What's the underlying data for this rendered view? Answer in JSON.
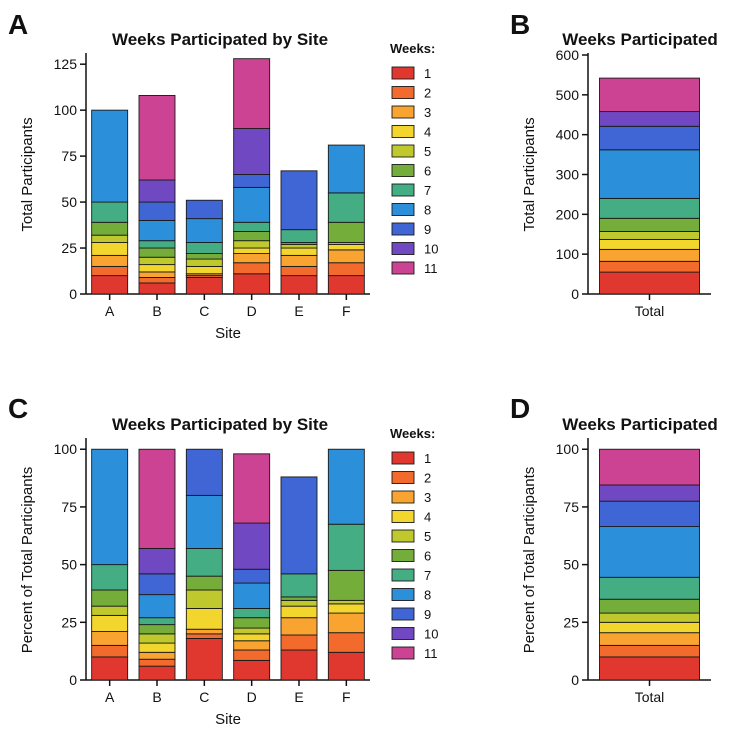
{
  "panels": [
    {
      "letter": "A"
    },
    {
      "letter": "B"
    },
    {
      "letter": "C"
    },
    {
      "letter": "D"
    }
  ],
  "legend": {
    "title": "Weeks:",
    "items": [
      "1",
      "2",
      "3",
      "4",
      "5",
      "6",
      "7",
      "8",
      "9",
      "10",
      "11"
    ],
    "colors": [
      "#e0382f",
      "#f26b2c",
      "#f9a431",
      "#f3d62d",
      "#bfc92d",
      "#74ad3a",
      "#44ad84",
      "#2b8fda",
      "#3f66d4",
      "#7048c2",
      "#cd4394"
    ]
  },
  "chart_data": [
    {
      "type": "bar",
      "stacked": true,
      "title": "Weeks Participated by Site",
      "xlabel": "Site",
      "ylabel": "Total Participants",
      "categories": [
        "A",
        "B",
        "C",
        "D",
        "E",
        "F"
      ],
      "ylim": [
        0,
        130
      ],
      "yticks": [
        0,
        25,
        50,
        75,
        100,
        125
      ],
      "series": [
        {
          "name": "1",
          "values": [
            10,
            6,
            9,
            11,
            10,
            10
          ]
        },
        {
          "name": "2",
          "values": [
            5,
            3,
            1,
            6,
            5,
            7
          ]
        },
        {
          "name": "3",
          "values": [
            6,
            3,
            1,
            5,
            6,
            7
          ]
        },
        {
          "name": "4",
          "values": [
            7,
            4,
            4,
            3,
            4,
            3
          ]
        },
        {
          "name": "5",
          "values": [
            4,
            4,
            4,
            4,
            2,
            1
          ]
        },
        {
          "name": "6",
          "values": [
            7,
            5,
            3,
            5,
            1,
            11
          ]
        },
        {
          "name": "7",
          "values": [
            11,
            4,
            6,
            5,
            7,
            16
          ]
        },
        {
          "name": "8",
          "values": [
            50,
            11,
            13,
            19,
            0,
            26
          ]
        },
        {
          "name": "9",
          "values": [
            0,
            10,
            10,
            7,
            32,
            0
          ]
        },
        {
          "name": "10",
          "values": [
            0,
            12,
            0,
            25,
            0,
            0
          ]
        },
        {
          "name": "11",
          "values": [
            0,
            46,
            0,
            38,
            0,
            0
          ]
        }
      ]
    },
    {
      "type": "bar",
      "stacked": true,
      "title": "Weeks Participated",
      "xlabel": "",
      "ylabel": "Total Participants",
      "categories": [
        "Total"
      ],
      "ylim": [
        0,
        600
      ],
      "yticks": [
        0,
        100,
        200,
        300,
        400,
        500,
        600
      ],
      "series": [
        {
          "name": "1",
          "values": [
            55
          ]
        },
        {
          "name": "2",
          "values": [
            27
          ]
        },
        {
          "name": "3",
          "values": [
            30
          ]
        },
        {
          "name": "4",
          "values": [
            25
          ]
        },
        {
          "name": "5",
          "values": [
            20
          ]
        },
        {
          "name": "6",
          "values": [
            33
          ]
        },
        {
          "name": "7",
          "values": [
            50
          ]
        },
        {
          "name": "8",
          "values": [
            122
          ]
        },
        {
          "name": "9",
          "values": [
            59
          ]
        },
        {
          "name": "10",
          "values": [
            37
          ]
        },
        {
          "name": "11",
          "values": [
            84
          ]
        }
      ]
    },
    {
      "type": "bar",
      "stacked": true,
      "title": "Weeks Participated by Site",
      "xlabel": "Site",
      "ylabel": "Percent of Total Participants",
      "categories": [
        "A",
        "B",
        "C",
        "D",
        "E",
        "F"
      ],
      "ylim": [
        0,
        104
      ],
      "yticks": [
        0,
        25,
        50,
        75,
        100
      ],
      "series": [
        {
          "name": "1",
          "values": [
            10,
            6,
            18,
            8.5,
            13,
            12
          ]
        },
        {
          "name": "2",
          "values": [
            5,
            3,
            2,
            4.5,
            6.5,
            8.5
          ]
        },
        {
          "name": "3",
          "values": [
            6,
            3,
            2,
            4,
            7.5,
            8.5
          ]
        },
        {
          "name": "4",
          "values": [
            7,
            4,
            9,
            3,
            5,
            4
          ]
        },
        {
          "name": "5",
          "values": [
            4,
            4,
            8,
            2.5,
            2.5,
            1.5
          ]
        },
        {
          "name": "6",
          "values": [
            7,
            4,
            6,
            4.5,
            1.5,
            13
          ]
        },
        {
          "name": "7",
          "values": [
            11,
            3,
            12,
            4,
            10,
            20
          ]
        },
        {
          "name": "8",
          "values": [
            50,
            10,
            23,
            11,
            0,
            32.5
          ]
        },
        {
          "name": "9",
          "values": [
            0,
            9,
            20,
            6,
            42,
            0
          ]
        },
        {
          "name": "10",
          "values": [
            0,
            11,
            0,
            20,
            0,
            0
          ]
        },
        {
          "name": "11",
          "values": [
            0,
            43,
            0,
            30,
            0,
            0
          ]
        }
      ]
    },
    {
      "type": "bar",
      "stacked": true,
      "title": "Weeks Participated",
      "xlabel": "",
      "ylabel": "Percent of Total Participants",
      "categories": [
        "Total"
      ],
      "ylim": [
        0,
        104
      ],
      "yticks": [
        0,
        25,
        50,
        75,
        100
      ],
      "series": [
        {
          "name": "1",
          "values": [
            10
          ]
        },
        {
          "name": "2",
          "values": [
            5
          ]
        },
        {
          "name": "3",
          "values": [
            5.5
          ]
        },
        {
          "name": "4",
          "values": [
            4.5
          ]
        },
        {
          "name": "5",
          "values": [
            4
          ]
        },
        {
          "name": "6",
          "values": [
            6
          ]
        },
        {
          "name": "7",
          "values": [
            9.5
          ]
        },
        {
          "name": "8",
          "values": [
            22
          ]
        },
        {
          "name": "9",
          "values": [
            11
          ]
        },
        {
          "name": "10",
          "values": [
            7
          ]
        },
        {
          "name": "11",
          "values": [
            15.5
          ]
        }
      ]
    }
  ]
}
